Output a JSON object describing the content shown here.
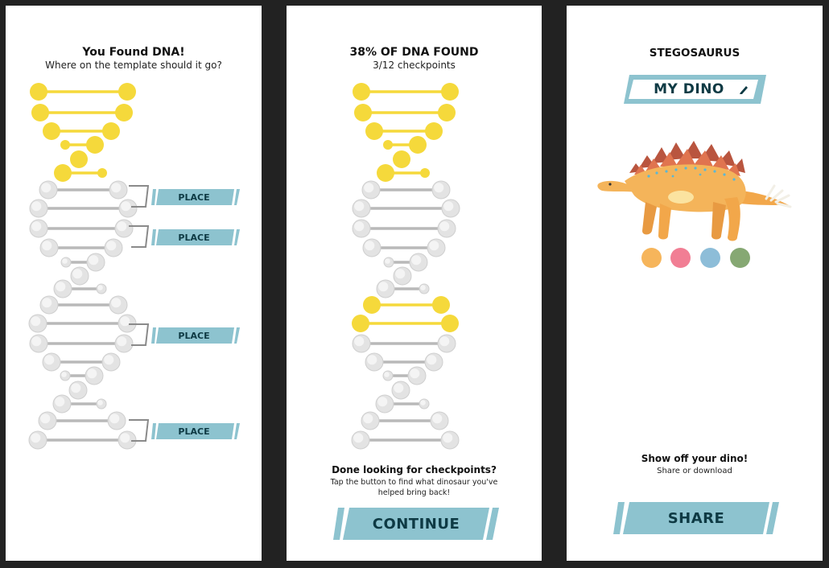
{
  "colors": {
    "yellow": "#f5d93b",
    "gray": "#c8c8c8",
    "teal": "#8dc3cf",
    "dark_teal": "#0e3a44",
    "background": "#222222"
  },
  "screen1": {
    "title": "You Found DNA!",
    "subtitle": "Where on the template should it go?",
    "place_buttons": [
      "PLACE",
      "PLACE",
      "PLACE",
      "PLACE"
    ]
  },
  "screen2": {
    "title": "38% OF DNA FOUND",
    "subtitle": "3/12 checkpoints",
    "progress_percent": 38,
    "checkpoints_found": 3,
    "checkpoints_total": 12,
    "prompt_title": "Done looking for checkpoints?",
    "prompt_text_line1": "Tap the button to find what dinosaur you've",
    "prompt_text_line2": "helped bring back!",
    "continue_label": "CONTINUE"
  },
  "screen3": {
    "title": "STEGOSAURUS",
    "my_dino_label": "MY DINO",
    "edit_icon": "pencil-icon",
    "color_swatches": [
      "#f6b55b",
      "#f17e94",
      "#8dbdd8",
      "#86a873"
    ],
    "share_title": "Show off your dino!",
    "share_subtitle": "Share or download",
    "share_label": "SHARE"
  }
}
